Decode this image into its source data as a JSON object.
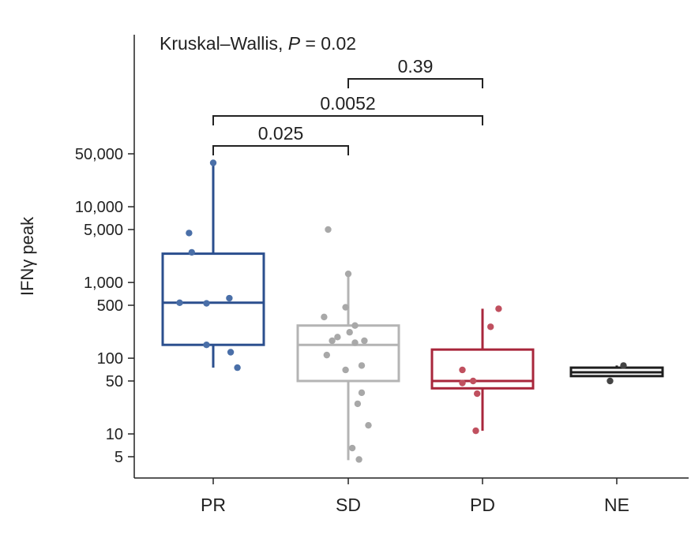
{
  "chart_data": {
    "type": "box",
    "title_prefix": "Kruskal–Wallis, ",
    "title_p": "P",
    "title_suffix": " = 0.02",
    "ylabel": "IFNγ peak",
    "y_scale": "log",
    "ylim": [
      3,
      500000
    ],
    "yticks": [
      5,
      10,
      50,
      100,
      500,
      1000,
      5000,
      10000,
      50000
    ],
    "ytick_labels": [
      "5",
      "10",
      "50",
      "100",
      "500",
      "1,000",
      "5,000",
      "10,000",
      "50,000"
    ],
    "grid": false,
    "categories": [
      "PR",
      "SD",
      "PD",
      "NE"
    ],
    "groups": [
      {
        "name": "PR",
        "color": "#2b4f8e",
        "point_color": "#4a6fa8",
        "box": {
          "whisker_low": 75,
          "q1": 150,
          "median": 540,
          "q3": 2400,
          "whisker_high": 38000
        },
        "points": [
          {
            "dx": 0.0,
            "y": 38000
          },
          {
            "dx": -0.18,
            "y": 4500
          },
          {
            "dx": -0.16,
            "y": 2500
          },
          {
            "dx": -0.25,
            "y": 540
          },
          {
            "dx": -0.05,
            "y": 530
          },
          {
            "dx": 0.12,
            "y": 620
          },
          {
            "dx": -0.05,
            "y": 150
          },
          {
            "dx": 0.13,
            "y": 120
          },
          {
            "dx": 0.18,
            "y": 75
          }
        ]
      },
      {
        "name": "SD",
        "color": "#b4b4b4",
        "point_color": "#a8a8a8",
        "box": {
          "whisker_low": 4.5,
          "q1": 50,
          "median": 150,
          "q3": 270,
          "whisker_high": 1300
        },
        "points": [
          {
            "dx": -0.15,
            "y": 5000
          },
          {
            "dx": 0.0,
            "y": 1300
          },
          {
            "dx": -0.02,
            "y": 470
          },
          {
            "dx": -0.18,
            "y": 350
          },
          {
            "dx": 0.05,
            "y": 270
          },
          {
            "dx": 0.01,
            "y": 220
          },
          {
            "dx": -0.08,
            "y": 190
          },
          {
            "dx": -0.12,
            "y": 170
          },
          {
            "dx": 0.05,
            "y": 160
          },
          {
            "dx": 0.12,
            "y": 170
          },
          {
            "dx": -0.16,
            "y": 110
          },
          {
            "dx": 0.1,
            "y": 80
          },
          {
            "dx": -0.02,
            "y": 70
          },
          {
            "dx": 0.1,
            "y": 35
          },
          {
            "dx": 0.07,
            "y": 25
          },
          {
            "dx": 0.15,
            "y": 13
          },
          {
            "dx": 0.03,
            "y": 6.5
          },
          {
            "dx": 0.08,
            "y": 4.6
          }
        ]
      },
      {
        "name": "PD",
        "color": "#a8263b",
        "point_color": "#c0505f",
        "box": {
          "whisker_low": 11,
          "q1": 40,
          "median": 50,
          "q3": 130,
          "whisker_high": 450
        },
        "points": [
          {
            "dx": 0.12,
            "y": 450
          },
          {
            "dx": 0.06,
            "y": 260
          },
          {
            "dx": -0.15,
            "y": 70
          },
          {
            "dx": -0.07,
            "y": 50
          },
          {
            "dx": -0.15,
            "y": 47
          },
          {
            "dx": -0.04,
            "y": 34
          },
          {
            "dx": -0.05,
            "y": 11
          }
        ]
      },
      {
        "name": "NE",
        "color": "#1e1e1e",
        "point_color": "#444444",
        "box": {
          "whisker_low": 58,
          "q1": 58,
          "median": 65,
          "q3": 75,
          "whisker_high": 80
        },
        "points": [
          {
            "dx": 0.05,
            "y": 80
          },
          {
            "dx": -0.05,
            "y": 50
          }
        ]
      }
    ],
    "comparisons": [
      {
        "from": 0,
        "to": 1,
        "label": "0.025"
      },
      {
        "from": 0,
        "to": 2,
        "label": "0.0052"
      },
      {
        "from": 1,
        "to": 2,
        "label": "0.39"
      }
    ]
  }
}
